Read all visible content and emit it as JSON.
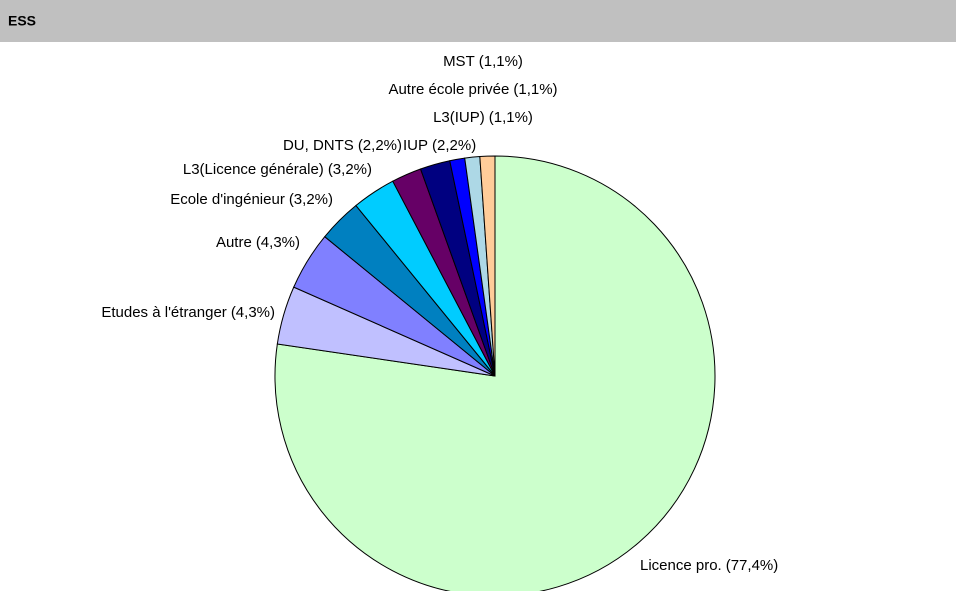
{
  "chart_data": {
    "type": "pie",
    "title": "ESS",
    "categories": [
      "Licence pro.",
      "Etudes à l'étranger",
      "Autre",
      "Ecole d'ingénieur",
      "L3(Licence générale)",
      "DU, DNTS",
      "IUP",
      "L3(IUP)",
      "Autre école privée",
      "MST"
    ],
    "values": [
      77.4,
      4.3,
      4.3,
      3.2,
      3.2,
      2.2,
      2.2,
      1.1,
      1.1,
      1.1
    ],
    "value_labels": [
      "(77,4%)",
      "(4,3%)",
      "(4,3%)",
      "(3,2%)",
      "(3,2%)",
      "(2,2%)",
      "(2,2%)",
      "(1,1%)",
      "(1,1%)",
      "(1,1%)"
    ],
    "colors": [
      "#ccffcc",
      "#c0c0ff",
      "#8080ff",
      "#0080c0",
      "#00ccff",
      "#660066",
      "#000080",
      "#0000ff",
      "#add8e6",
      "#ffcc99"
    ]
  }
}
